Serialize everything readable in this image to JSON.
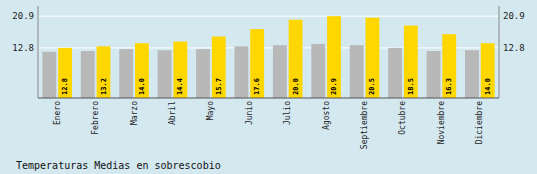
{
  "chart_data": {
    "type": "bar",
    "title": "Temperaturas Medias en sobrescobio",
    "categories": [
      "Enero",
      "Febrero",
      "Marzo",
      "Abril",
      "Mayo",
      "Junio",
      "Julio",
      "Agosto",
      "Septiembre",
      "Octubre",
      "Noviembre",
      "Diciembre"
    ],
    "series": [
      {
        "color": "#B8B8B8",
        "values": [
          11.8,
          12.0,
          12.5,
          12.2,
          12.5,
          13.2,
          13.5,
          13.8,
          13.5,
          12.8,
          12.0,
          12.2
        ]
      },
      {
        "color": "#FFD700",
        "values": [
          12.8,
          13.2,
          14.0,
          14.4,
          15.7,
          17.6,
          20.0,
          20.9,
          20.5,
          18.5,
          16.3,
          14.0
        ],
        "data_labels": true,
        "value_labels": [
          "12.8",
          "13.2",
          "14.0",
          "14.4",
          "15.7",
          "17.6",
          "20.0",
          "20.9",
          "20.5",
          "18.5",
          "16.3",
          "14.0"
        ]
      }
    ],
    "ylim": [
      0,
      23.5
    ],
    "yticks": [
      12.8,
      20.9
    ],
    "y2lim": [
      0,
      23.5
    ],
    "y2ticks": [
      12.8,
      20.9
    ],
    "grid": true
  }
}
